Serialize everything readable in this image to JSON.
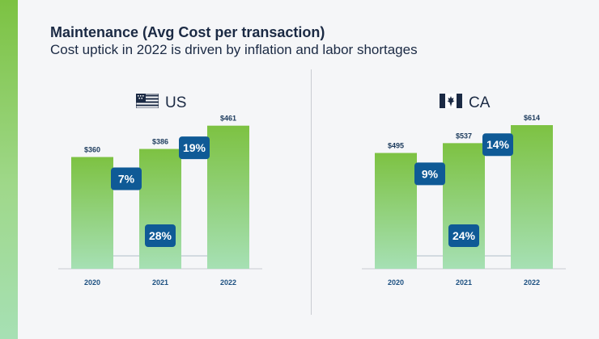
{
  "header": {
    "title": "Maintenance (Avg Cost per transaction)",
    "subtitle": "Cost uptick in 2022 is driven by inflation and labor shortages"
  },
  "colors": {
    "bar_top": "#7dc242",
    "bar_bottom": "#a6e0b4",
    "badge": "#0f5a96",
    "text": "#1b2a44"
  },
  "chart_data": [
    {
      "type": "bar",
      "title": "US",
      "flag": "us-flag-icon",
      "categories": [
        "2020",
        "2021",
        "2022"
      ],
      "values": [
        360,
        386,
        461
      ],
      "value_labels": [
        "$360",
        "$386",
        "$461"
      ],
      "ylim": [
        0,
        520
      ],
      "annotations": [
        {
          "label": "7%",
          "between": [
            "2020",
            "2021"
          ]
        },
        {
          "label": "19%",
          "between": [
            "2021",
            "2022"
          ]
        },
        {
          "label": "28%",
          "between": [
            "2020",
            "2022"
          ]
        }
      ]
    },
    {
      "type": "bar",
      "title": "CA",
      "flag": "canada-flag-icon",
      "categories": [
        "2020",
        "2021",
        "2022"
      ],
      "values": [
        495,
        537,
        614
      ],
      "value_labels": [
        "$495",
        "$537",
        "$614"
      ],
      "ylim": [
        0,
        690
      ],
      "annotations": [
        {
          "label": "9%",
          "between": [
            "2020",
            "2021"
          ]
        },
        {
          "label": "14%",
          "between": [
            "2021",
            "2022"
          ]
        },
        {
          "label": "24%",
          "between": [
            "2020",
            "2022"
          ]
        }
      ]
    }
  ]
}
